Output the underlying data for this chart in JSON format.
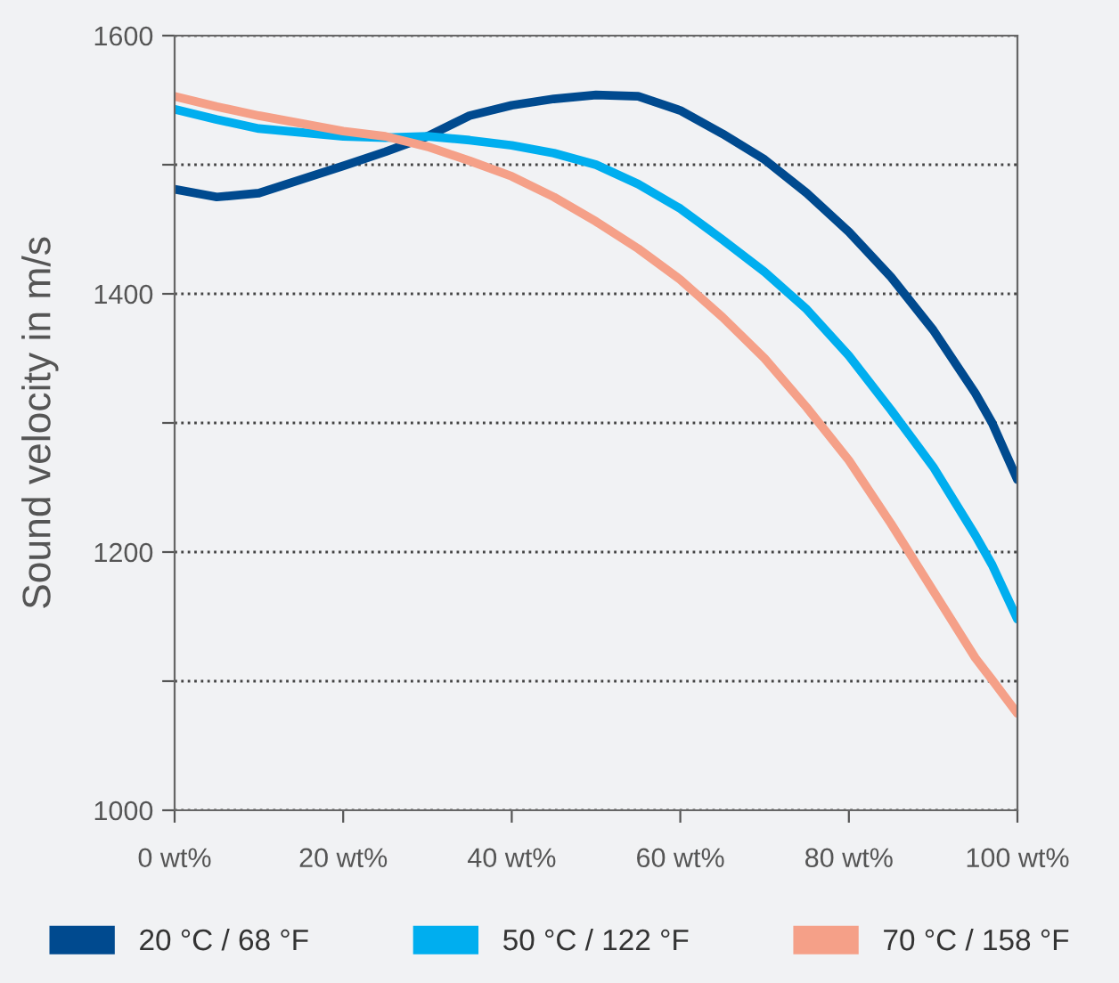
{
  "chart_data": {
    "type": "line",
    "ylabel": "Sound velocity in m/s",
    "x": [
      0,
      5,
      10,
      20,
      25,
      30,
      35,
      40,
      45,
      50,
      55,
      60,
      65,
      70,
      75,
      80,
      85,
      90,
      95,
      97,
      100
    ],
    "xlim": [
      0,
      100
    ],
    "xticks": [
      {
        "value": 0,
        "label": "0 wt%"
      },
      {
        "value": 20,
        "label": "20 wt%"
      },
      {
        "value": 40,
        "label": "40 wt%"
      },
      {
        "value": 60,
        "label": "60 wt%"
      },
      {
        "value": 80,
        "label": "80 wt%"
      },
      {
        "value": 100,
        "label": "100 wt%"
      }
    ],
    "ylim": [
      1000,
      1600
    ],
    "yticks": [
      1000,
      {
        "value": 1100,
        "label": null
      },
      1200,
      {
        "value": 1300,
        "label": null
      },
      1400,
      {
        "value": 1500,
        "label": null
      },
      1600
    ],
    "grid": "y",
    "legend": "bottom",
    "line_style": "solid",
    "series": [
      {
        "name": "20 °C / 68 °F",
        "color": "#004a8f",
        "values": [
          1481,
          1475,
          1478,
          1499,
          1510,
          1522,
          1538,
          1546,
          1551,
          1554,
          1553,
          1542,
          1524,
          1504,
          1478,
          1448,
          1413,
          1372,
          1323,
          1300,
          1256
        ]
      },
      {
        "name": "50 °C / 122 °F",
        "color": "#00aeef",
        "values": [
          1543,
          1535,
          1528,
          1522,
          1521,
          1522,
          1519,
          1515,
          1509,
          1500,
          1485,
          1466,
          1442,
          1417,
          1388,
          1352,
          1310,
          1266,
          1213,
          1190,
          1148
        ]
      },
      {
        "name": "70 °C / 158 °F",
        "color": "#f5a088",
        "values": [
          1553,
          1545,
          1538,
          1526,
          1522,
          1514,
          1503,
          1491,
          1475,
          1456,
          1435,
          1411,
          1382,
          1350,
          1312,
          1271,
          1222,
          1170,
          1118,
          1101,
          1075
        ]
      }
    ]
  }
}
